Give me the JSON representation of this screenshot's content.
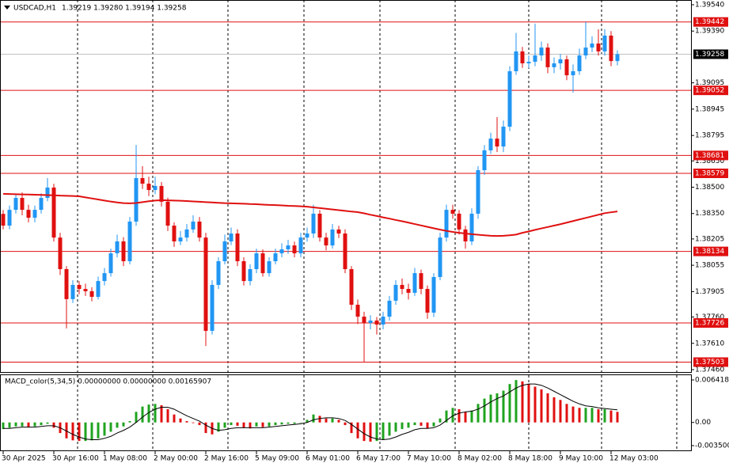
{
  "chart_data": [
    {
      "type": "candlestick",
      "title": "USDCAD,H1",
      "subtitle": "1.39219 1.39280 1.39194 1.39258",
      "up_color": "#2196f3",
      "down_color": "#e01010",
      "categories": [
        "30 Apr 2025",
        null,
        null,
        null,
        null,
        null,
        null,
        null,
        "30 Apr 16:00",
        null,
        null,
        null,
        null,
        null,
        null,
        null,
        "1 May 08:00",
        null,
        null,
        null,
        null,
        null,
        null,
        null,
        "2 May 00:00",
        null,
        null,
        null,
        null,
        null,
        null,
        null,
        "2 May 16:00",
        null,
        null,
        null,
        null,
        null,
        null,
        null,
        "5 May 09:00",
        null,
        null,
        null,
        null,
        null,
        null,
        null,
        "6 May 01:00",
        null,
        null,
        null,
        null,
        null,
        null,
        null,
        "6 May 17:00",
        null,
        null,
        null,
        null,
        null,
        null,
        null,
        "7 May 10:00",
        null,
        null,
        null,
        null,
        null,
        null,
        null,
        "8 May 02:00",
        null,
        null,
        null,
        null,
        null,
        null,
        null,
        "8 May 18:00",
        null,
        null,
        null,
        null,
        null,
        null,
        null,
        "9 May 10:00",
        null,
        null,
        null,
        null,
        null,
        null,
        null,
        "12 May 03:00",
        null
      ],
      "open": [
        1.38348,
        1.38281,
        1.38371,
        1.38439,
        1.38371,
        1.38326,
        1.38371,
        1.38439,
        1.38498,
        1.38213,
        1.38033,
        1.37862,
        1.37943,
        1.3792,
        1.37907,
        1.37875,
        1.37965,
        1.3801,
        1.38123,
        1.38191,
        1.38078,
        1.38304,
        1.38552,
        1.3852,
        1.38484,
        1.38507,
        1.38417,
        1.38281,
        1.38191,
        1.38213,
        1.38259,
        1.38304,
        1.38213,
        1.37681,
        1.37943,
        1.38078,
        1.38191,
        1.38236,
        1.38078,
        1.37965,
        1.38033,
        1.38123,
        1.3801,
        1.38078,
        1.38123,
        1.38146,
        1.38168,
        1.38123,
        1.38213,
        1.38236,
        1.38349,
        1.38213,
        1.38168,
        1.38259,
        1.38236,
        1.38033,
        1.3783,
        1.37762,
        1.37726,
        1.3774,
        1.37717,
        1.37762,
        1.37853,
        1.37943,
        1.3792,
        1.37898,
        1.3801,
        1.3792,
        1.37785,
        1.37988,
        1.38213,
        1.38371,
        1.38349,
        1.38259,
        1.38191,
        1.38349,
        1.38597,
        1.3871,
        1.38777,
        1.38732,
        1.38845,
        1.39161,
        1.39274,
        1.39206,
        1.39215,
        1.39251,
        1.39296,
        1.39184,
        1.39206,
        1.39229,
        1.39138,
        1.39161,
        1.39251,
        1.39296,
        1.39319,
        1.39274,
        1.39364,
        1.39219
      ],
      "high": [
        1.3837,
        1.38395,
        1.3846,
        1.3847,
        1.384,
        1.38395,
        1.38465,
        1.38552,
        1.3852,
        1.3824,
        1.3805,
        1.3797,
        1.37965,
        1.3795,
        1.3793,
        1.3799,
        1.3804,
        1.3815,
        1.3823,
        1.38215,
        1.3833,
        1.38741,
        1.3862,
        1.3856,
        1.3856,
        1.3853,
        1.3844,
        1.383,
        1.3825,
        1.3829,
        1.3834,
        1.3833,
        1.3824,
        1.3797,
        1.381,
        1.3823,
        1.3827,
        1.3826,
        1.381,
        1.3806,
        1.3815,
        1.38145,
        1.381,
        1.3815,
        1.3818,
        1.382,
        1.3819,
        1.3824,
        1.3827,
        1.384,
        1.3837,
        1.3824,
        1.3829,
        1.3828,
        1.3826,
        1.3805,
        1.3786,
        1.3779,
        1.3777,
        1.3776,
        1.3779,
        1.3788,
        1.3797,
        1.3798,
        1.3795,
        1.3804,
        1.3803,
        1.3794,
        1.3801,
        1.3824,
        1.384,
        1.384,
        1.3837,
        1.3828,
        1.3838,
        1.3862,
        1.3874,
        1.3881,
        1.389,
        1.3888,
        1.3919,
        1.3938,
        1.393,
        1.3925,
        1.39432,
        1.3933,
        1.3932,
        1.3924,
        1.3926,
        1.3925,
        1.392,
        1.3929,
        1.39441,
        1.3936,
        1.394,
        1.394,
        1.3939,
        1.3928
      ],
      "low": [
        1.3826,
        1.3826,
        1.3835,
        1.3834,
        1.383,
        1.383,
        1.3835,
        1.3842,
        1.3819,
        1.38,
        1.37695,
        1.3784,
        1.3789,
        1.3788,
        1.3785,
        1.3786,
        1.3794,
        1.3799,
        1.381,
        1.3805,
        1.3806,
        1.3828,
        1.3849,
        1.3845,
        1.3846,
        1.3839,
        1.3825,
        1.3816,
        1.3817,
        1.3819,
        1.3824,
        1.3819,
        1.37595,
        1.3766,
        1.3792,
        1.3806,
        1.3817,
        1.3805,
        1.3794,
        1.3794,
        1.3801,
        1.3799,
        1.3799,
        1.3806,
        1.381,
        1.3812,
        1.381,
        1.381,
        1.3819,
        1.3821,
        1.3819,
        1.3814,
        1.3815,
        1.3821,
        1.3801,
        1.378,
        1.3772,
        1.37501,
        1.3769,
        1.3766,
        1.3769,
        1.3774,
        1.3783,
        1.3789,
        1.3786,
        1.3788,
        1.3789,
        1.3775,
        1.3776,
        1.3797,
        1.3819,
        1.3832,
        1.3823,
        1.3815,
        1.3817,
        1.3832,
        1.3857,
        1.3869,
        1.387,
        1.387,
        1.3882,
        1.3914,
        1.3918,
        1.3918,
        1.3919,
        1.3922,
        1.3915,
        1.3915,
        1.3917,
        1.3911,
        1.3904,
        1.3914,
        1.3923,
        1.3927,
        1.3925,
        1.3925,
        1.3919,
        1.39194
      ],
      "close": [
        1.38281,
        1.38371,
        1.38439,
        1.38371,
        1.38326,
        1.38371,
        1.38439,
        1.38498,
        1.38213,
        1.38033,
        1.37862,
        1.37943,
        1.3792,
        1.37907,
        1.37875,
        1.37965,
        1.3801,
        1.38123,
        1.38191,
        1.38078,
        1.38304,
        1.38552,
        1.3852,
        1.38484,
        1.38507,
        1.38417,
        1.38281,
        1.38191,
        1.38213,
        1.38259,
        1.38304,
        1.38213,
        1.37681,
        1.37943,
        1.38078,
        1.38191,
        1.38236,
        1.38078,
        1.37965,
        1.38033,
        1.38123,
        1.3801,
        1.38078,
        1.38123,
        1.38146,
        1.38168,
        1.38123,
        1.38213,
        1.38236,
        1.38349,
        1.38213,
        1.38168,
        1.38259,
        1.38236,
        1.38033,
        1.3783,
        1.37762,
        1.37726,
        1.3774,
        1.37717,
        1.37762,
        1.37853,
        1.37943,
        1.3792,
        1.37898,
        1.3801,
        1.3792,
        1.37785,
        1.37988,
        1.38213,
        1.38371,
        1.38349,
        1.38259,
        1.38191,
        1.38349,
        1.38597,
        1.3871,
        1.38777,
        1.38732,
        1.38845,
        1.39161,
        1.39274,
        1.39206,
        1.39215,
        1.39251,
        1.39296,
        1.39184,
        1.39206,
        1.39229,
        1.39138,
        1.39161,
        1.39251,
        1.39296,
        1.39319,
        1.39274,
        1.39364,
        1.39219,
        1.39258
      ],
      "ma": {
        "color": "#e01010",
        "values": [
          1.38462,
          1.38461,
          1.3846,
          1.38459,
          1.38458,
          1.38457,
          1.38456,
          1.38455,
          1.38454,
          1.38452,
          1.38451,
          1.3845,
          1.38448,
          1.38442,
          1.38436,
          1.3843,
          1.38424,
          1.38418,
          1.38413,
          1.38409,
          1.38408,
          1.3841,
          1.38415,
          1.3842,
          1.38424,
          1.38426,
          1.38425,
          1.38424,
          1.38423,
          1.38421,
          1.38419,
          1.38417,
          1.38415,
          1.38413,
          1.38411,
          1.38409,
          1.38408,
          1.38407,
          1.38406,
          1.38404,
          1.38403,
          1.38401,
          1.38399,
          1.38398,
          1.38396,
          1.38394,
          1.38393,
          1.38391,
          1.38389,
          1.38385,
          1.38381,
          1.38377,
          1.38373,
          1.38369,
          1.38365,
          1.38361,
          1.38358,
          1.38351,
          1.38343,
          1.38336,
          1.38328,
          1.38321,
          1.38313,
          1.38306,
          1.38298,
          1.3829,
          1.38282,
          1.38274,
          1.38266,
          1.38258,
          1.38251,
          1.38245,
          1.3824,
          1.38236,
          1.38232,
          1.38229,
          1.38226,
          1.38223,
          1.38222,
          1.38223,
          1.38226,
          1.3823,
          1.3824,
          1.38248,
          1.38257,
          1.38265,
          1.38273,
          1.38281,
          1.38289,
          1.38298,
          1.38307,
          1.38316,
          1.38325,
          1.38334,
          1.38343,
          1.38352,
          1.38357,
          1.38362
        ]
      },
      "levels": [
        1.39442,
        1.39052,
        1.38681,
        1.38579,
        1.38134,
        1.37726,
        1.37503
      ],
      "level_color": "#e01010",
      "current_price": 1.39258,
      "ylim": [
        1.3746,
        1.3954
      ],
      "yticks": [
        {
          "value": 1.3954,
          "label": "1.39540"
        },
        {
          "value": 1.3939,
          "label": "1.39390"
        },
        1.39095,
        1.38945,
        1.38795,
        {
          "value": 1.3865,
          "label": "1.38650"
        },
        {
          "value": 1.385,
          "label": "1.38500"
        },
        {
          "value": 1.3835,
          "label": "1.38350"
        },
        1.38205,
        1.38055,
        1.37905,
        {
          "value": 1.3776,
          "label": "1.37760"
        },
        {
          "value": 1.3761,
          "label": "1.37610"
        },
        {
          "value": 1.3746,
          "label": "1.37460"
        }
      ]
    },
    {
      "type": "macd",
      "title": "MACD_color(5,34,5) 0.00000000 0.00000000 0.00165907",
      "up_color": "#1fa31f",
      "down_color": "#e01010",
      "signal_color": "#000000",
      "values": [
        -0.001,
        -0.0008,
        -0.0006,
        -0.0006,
        -0.0007,
        -0.0006,
        -0.0004,
        -0.0002,
        -0.0008,
        -0.0016,
        -0.0024,
        -0.0027,
        -0.0028,
        -0.0028,
        -0.0027,
        -0.0024,
        -0.002,
        -0.0014,
        -0.0008,
        -0.0006,
        0.0002,
        0.0016,
        0.0024,
        0.0027,
        0.0028,
        0.0026,
        0.002,
        0.0012,
        0.0006,
        0.0002,
        -0.0001,
        -0.0004,
        -0.0016,
        -0.0018,
        -0.0014,
        -0.0008,
        -0.0004,
        -0.0005,
        -0.0008,
        -0.0009,
        -0.0006,
        -0.0007,
        -0.0006,
        -0.0004,
        -0.0003,
        -0.0002,
        -0.0002,
        0,
        0.0004,
        0.0012,
        0.001,
        0.0006,
        0.0006,
        0.0004,
        -0.0004,
        -0.0016,
        -0.0024,
        -0.0028,
        -0.0029,
        -0.0028,
        -0.0026,
        -0.002,
        -0.0014,
        -0.001,
        -0.0008,
        -0.0004,
        -0.0005,
        -0.0009,
        -0.0006,
        0.0006,
        0.0018,
        0.0022,
        0.002,
        0.0016,
        0.0018,
        0.0028,
        0.0036,
        0.0042,
        0.0044,
        0.0048,
        0.0058,
        0.0064,
        0.0062,
        0.0058,
        0.0054,
        0.005,
        0.0044,
        0.0038,
        0.0034,
        0.0028,
        0.0024,
        0.0022,
        0.0022,
        0.0022,
        0.002,
        0.002,
        0.0018,
        0.0016
      ],
      "signal": [
        -0.0009,
        -0.0009,
        -0.0008,
        -0.0007,
        -0.0007,
        -0.0007,
        -0.0006,
        -0.0005,
        -0.0005,
        -0.0008,
        -0.0013,
        -0.0018,
        -0.0022,
        -0.0025,
        -0.0026,
        -0.0026,
        -0.0024,
        -0.0021,
        -0.0016,
        -0.0012,
        -0.0007,
        0,
        0.0008,
        0.0015,
        0.002,
        0.0023,
        0.0023,
        0.002,
        0.0015,
        0.001,
        0.0006,
        0.0002,
        -0.0004,
        -0.0009,
        -0.0012,
        -0.0011,
        -0.0009,
        -0.0008,
        -0.0008,
        -0.0008,
        -0.0008,
        -0.0008,
        -0.0007,
        -0.0006,
        -0.0005,
        -0.0004,
        -0.0003,
        -0.0002,
        0,
        0.0004,
        0.0006,
        0.0007,
        0.0007,
        0.0006,
        0.0003,
        -0.0003,
        -0.001,
        -0.0017,
        -0.0022,
        -0.0025,
        -0.0026,
        -0.0025,
        -0.0022,
        -0.0018,
        -0.0015,
        -0.0011,
        -0.0009,
        -0.0009,
        -0.0008,
        -0.0004,
        0.0003,
        0.001,
        0.0014,
        0.0016,
        0.0017,
        0.002,
        0.0025,
        0.0031,
        0.0036,
        0.004,
        0.0046,
        0.0052,
        0.0056,
        0.0058,
        0.0058,
        0.0056,
        0.0052,
        0.0047,
        0.0042,
        0.0037,
        0.0032,
        0.0028,
        0.0025,
        0.0024,
        0.0022,
        0.0021,
        0.002,
        0.0019
      ],
      "ylim": [
        -0.0035,
        0.006418
      ],
      "yticks": [
        {
          "value": 0.006418,
          "label": "0.0064180"
        },
        {
          "value": 0,
          "label": "0.00"
        },
        {
          "value": -0.0035,
          "label": "-0.0035000"
        }
      ]
    }
  ]
}
